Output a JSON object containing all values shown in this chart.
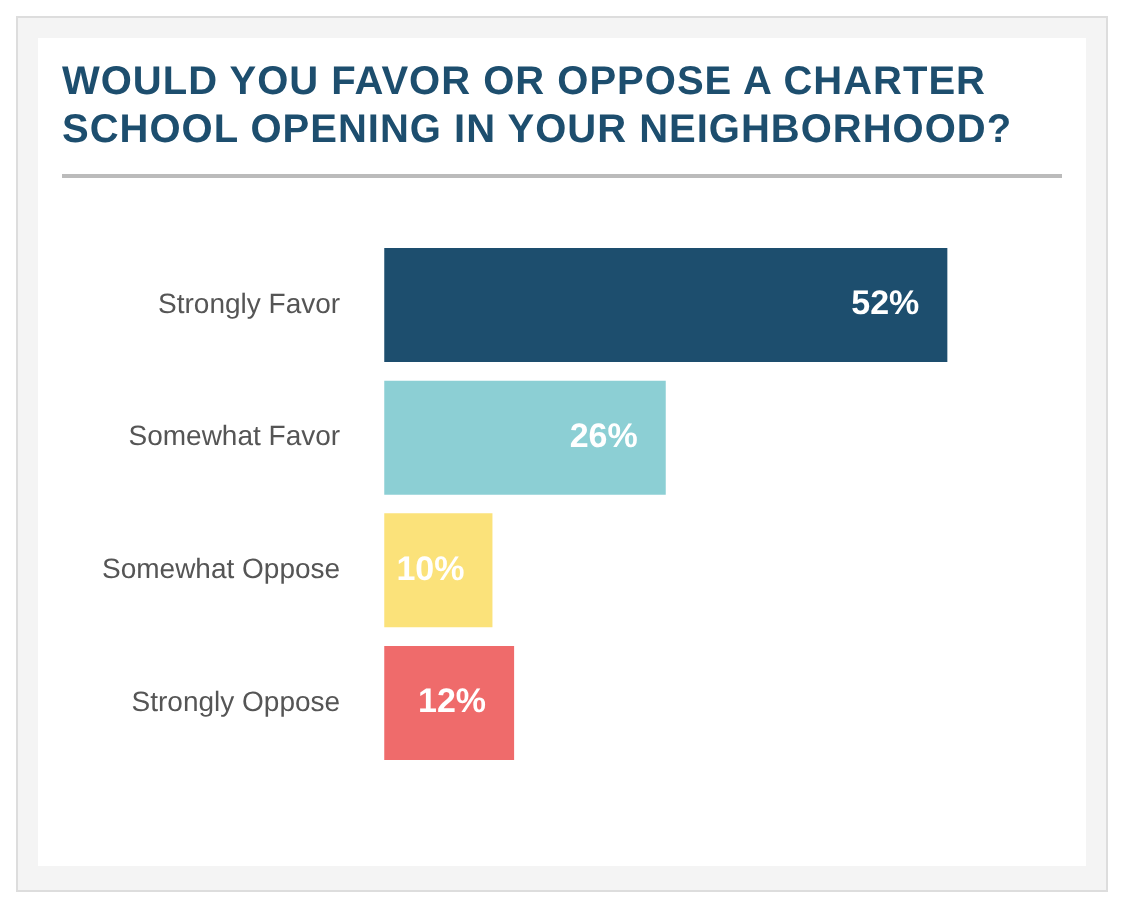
{
  "chart_data": {
    "type": "bar",
    "title": "WOULD YOU FAVOR OR OPPOSE A CHARTER SCHOOL OPENING IN YOUR NEIGHBORHOOD?",
    "orientation": "horizontal",
    "categories": [
      "Strongly Favor",
      "Somewhat Favor",
      "Somewhat Oppose",
      "Strongly Oppose"
    ],
    "values": [
      52,
      26,
      10,
      12
    ],
    "value_labels": [
      "52%",
      "26%",
      "10%",
      "12%"
    ],
    "colors": [
      "#1d4e6e",
      "#8ccfd4",
      "#fbe27a",
      "#ef6b6b"
    ]
  }
}
